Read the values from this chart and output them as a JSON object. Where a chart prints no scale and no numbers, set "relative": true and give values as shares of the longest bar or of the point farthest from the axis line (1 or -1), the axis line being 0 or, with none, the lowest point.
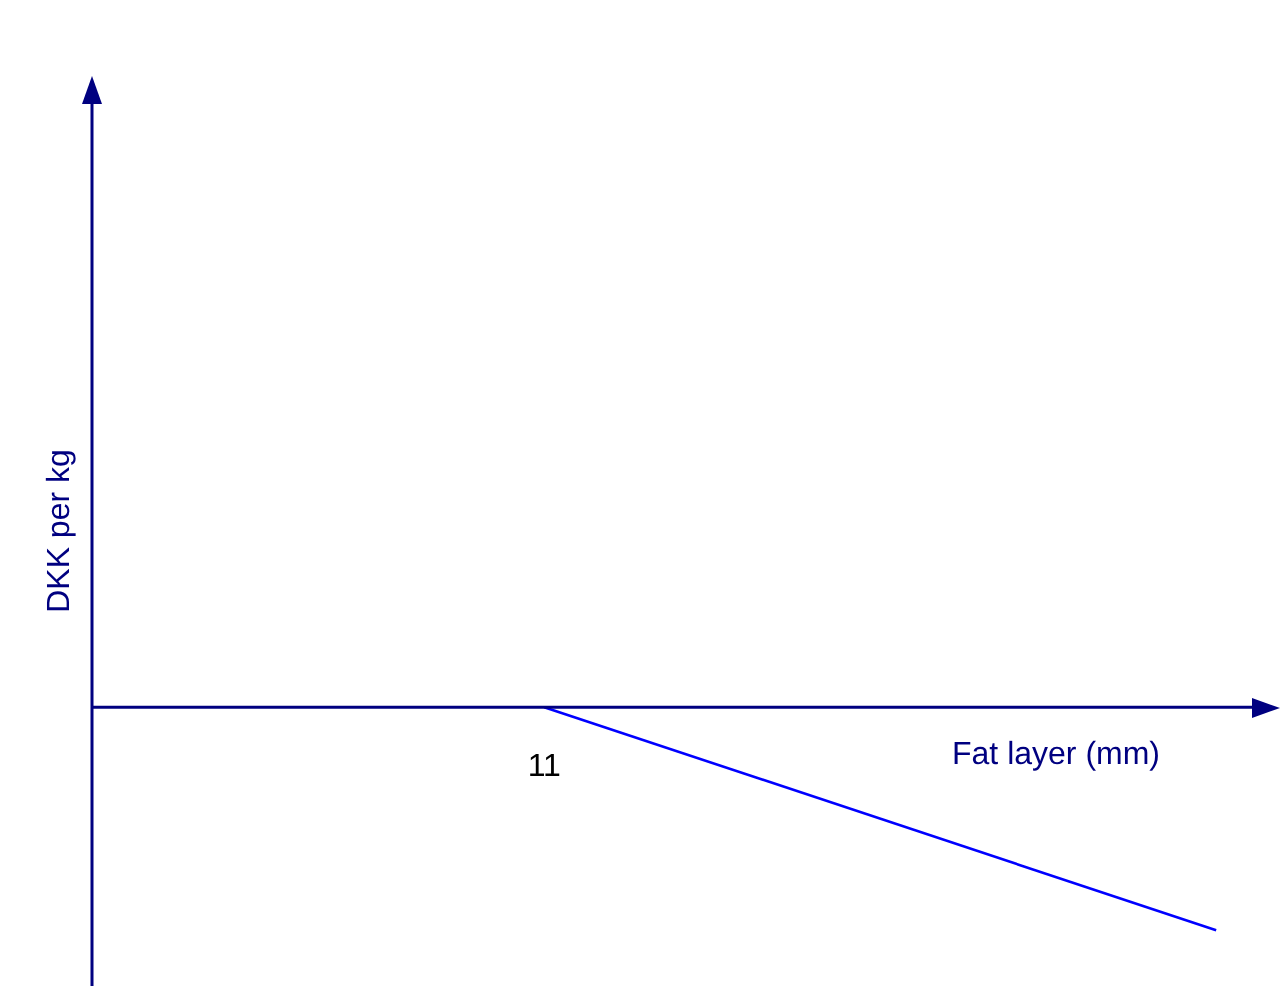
{
  "chart_data": {
    "type": "line",
    "xlabel": "Fat layer (mm)",
    "ylabel": "DKK per kg",
    "relative": true,
    "categories": [
      null,
      null
    ],
    "values": [
      0,
      -1
    ],
    "color": "#0000ff",
    "annotations": [
      "11"
    ],
    "marker": "none",
    "legend": false
  }
}
